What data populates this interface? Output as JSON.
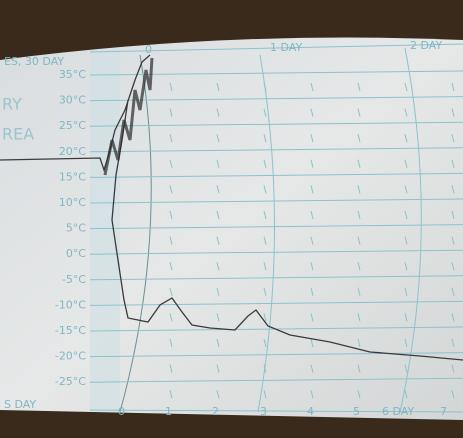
{
  "header": {
    "chart_name": "ES, 30 DAY",
    "marks": [
      "0",
      "1 DAY",
      "2 DAY"
    ]
  },
  "side_labels": [
    "RY",
    "REA"
  ],
  "temperature_scale": [
    "35°C",
    "30°C",
    "25°C",
    "20°C",
    "15°C",
    "10°C",
    "5°C",
    "0°C",
    "-5°C",
    "-10°C",
    "-15°C",
    "-20°C",
    "-25°C"
  ],
  "footer": {
    "chart_name": "S DAY",
    "marks": [
      "0",
      "1",
      "2",
      "3",
      "4",
      "5",
      "6 DAY",
      "7"
    ]
  }
}
